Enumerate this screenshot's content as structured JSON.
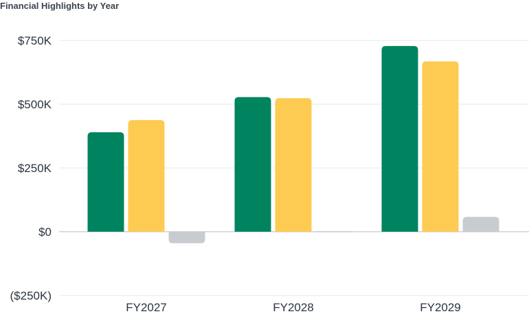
{
  "chart_data": {
    "type": "bar",
    "title": "Financial Highlights by Year",
    "categories": [
      "FY2027",
      "FY2028",
      "FY2029"
    ],
    "series": [
      {
        "values": [
          390000,
          528000,
          728000
        ],
        "color": "#00845f"
      },
      {
        "values": [
          438000,
          524000,
          668000
        ],
        "color": "#fecb52"
      },
      {
        "values": [
          -45000,
          2000,
          58000
        ],
        "color": "#c8ccd0"
      }
    ],
    "ylim": [
      -250000,
      750000
    ],
    "yticks": [
      {
        "value": 750000,
        "label": "$750K"
      },
      {
        "value": 500000,
        "label": "$500K"
      },
      {
        "value": 250000,
        "label": "$250K"
      },
      {
        "value": 0,
        "label": "$0"
      },
      {
        "value": -250000,
        "label": "($250K)"
      }
    ],
    "grid": true,
    "xlabel": "",
    "ylabel": ""
  }
}
